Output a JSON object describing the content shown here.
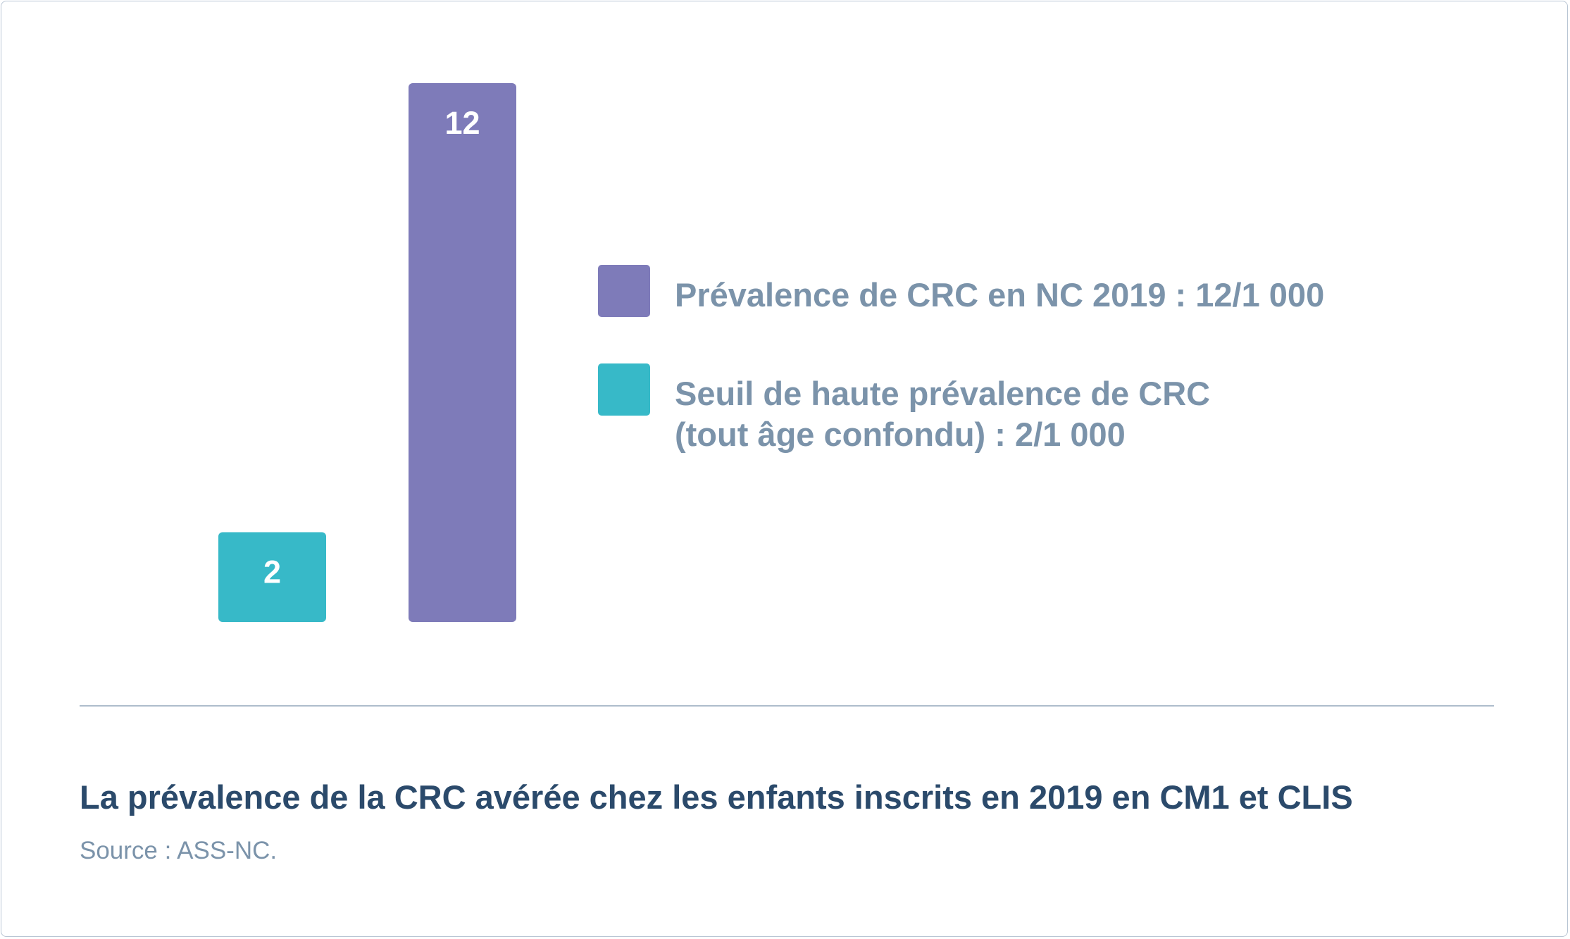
{
  "chart_data": {
    "type": "bar",
    "categories": [
      "Seuil de haute prévalence de CRC",
      "Prévalence de CRC en NC 2019"
    ],
    "values": [
      2,
      12
    ],
    "data_labels": [
      "2",
      "12"
    ],
    "colors": [
      "#37b9c8",
      "#7e7bb9"
    ],
    "ylim": [
      0,
      12
    ],
    "grid": false,
    "legend_placement": "right",
    "legend": [
      {
        "label": "Prévalence de CRC en NC 2019 : 12/1 000",
        "color": "#7e7bb9"
      },
      {
        "label": "Seuil de haute prévalence de CRC\n(tout âge confondu) : 2/1 000",
        "color": "#37b9c8"
      }
    ],
    "title": "La prévalence de la CRC avérée chez les enfants inscrits en 2019 en CM1 et CLIS",
    "source": "Source : ASS-NC."
  }
}
